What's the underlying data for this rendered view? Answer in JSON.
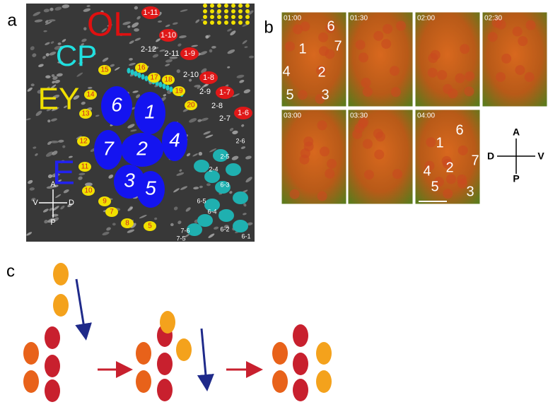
{
  "panels": {
    "a": {
      "label": "a",
      "regions": [
        "OL",
        "CP",
        "EY",
        "E"
      ],
      "cells": [
        "6",
        "1",
        "4",
        "7",
        "2",
        "3",
        "5"
      ],
      "axes": [
        "A",
        "P",
        "V",
        "D"
      ],
      "ol_labels": [
        "1-11",
        "1-10",
        "2-12",
        "2-11",
        "1-9",
        "2-10",
        "1-8",
        "2-9",
        "1-7",
        "2-8",
        "2-7",
        "1-6"
      ],
      "ey_labels": [
        "15",
        "16",
        "17",
        "18",
        "19",
        "20",
        "14",
        "13",
        "12",
        "11",
        "10",
        "9",
        "8",
        "7",
        "5"
      ],
      "cp_labels": [
        "2-6",
        "2-5",
        "2-4",
        "6-5",
        "6-4",
        "6-3",
        "6-2",
        "7-6",
        "7-5",
        "6-1"
      ]
    },
    "b": {
      "label": "b",
      "times": [
        "01:00",
        "01:30",
        "02:00",
        "02:30",
        "03:00",
        "03:30",
        "04:00"
      ],
      "first_cells": [
        "6",
        "7",
        "1",
        "4",
        "2",
        "5",
        "3"
      ],
      "last_cells": [
        "6",
        "1",
        "7",
        "4",
        "2",
        "5",
        "3"
      ],
      "compass": [
        "A",
        "D",
        "V",
        "P"
      ]
    },
    "c": {
      "label": "c"
    }
  }
}
